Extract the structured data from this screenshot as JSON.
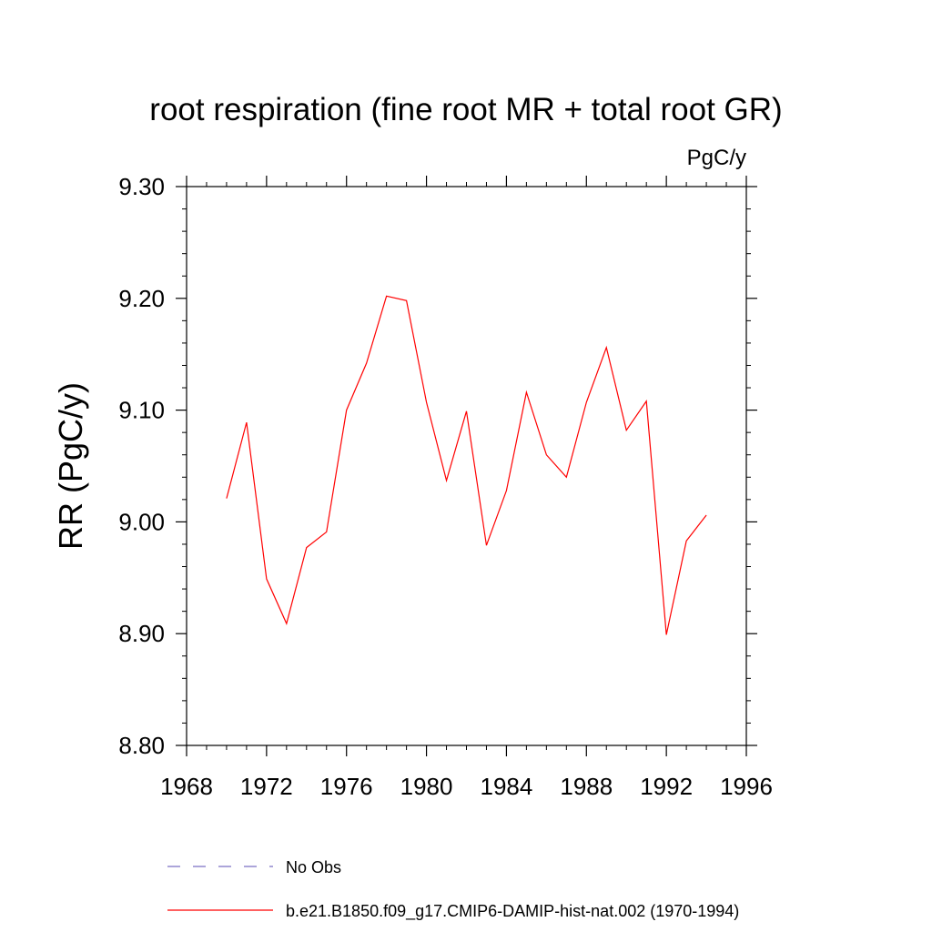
{
  "chart_data": {
    "type": "line",
    "title": "root respiration (fine root MR + total root GR)",
    "units": "PgC/y",
    "ylabel": "RR  (PgC/y)",
    "xlabel": "",
    "xlim": [
      1968,
      1996
    ],
    "ylim": [
      8.8,
      9.3
    ],
    "x_ticks": [
      1968,
      1972,
      1976,
      1980,
      1984,
      1988,
      1992,
      1996
    ],
    "y_ticks": [
      8.8,
      8.9,
      9.0,
      9.1,
      9.2,
      9.3
    ],
    "x_tick_labels": [
      "1968",
      "1972",
      "1976",
      "1980",
      "1984",
      "1988",
      "1992",
      "1996"
    ],
    "y_tick_labels": [
      "8.80",
      "8.90",
      "9.00",
      "9.10",
      "9.20",
      "9.30"
    ],
    "grid": false,
    "legend_position": "bottom",
    "legend": [
      {
        "label": "No Obs",
        "color": "#7b6fc4",
        "style": "dashed"
      },
      {
        "label": "b.e21.B1850.f09_g17.CMIP6-DAMIP-hist-nat.002 (1970-1994)",
        "color": "#ff0000",
        "style": "solid"
      }
    ],
    "series": [
      {
        "name": "b.e21.B1850.f09_g17.CMIP6-DAMIP-hist-nat.002 (1970-1994)",
        "color": "#ff0000",
        "x": [
          1970,
          1971,
          1972,
          1973,
          1974,
          1975,
          1976,
          1977,
          1978,
          1979,
          1980,
          1981,
          1982,
          1983,
          1984,
          1985,
          1986,
          1987,
          1988,
          1989,
          1990,
          1991,
          1992,
          1993,
          1994
        ],
        "values": [
          9.021,
          9.089,
          8.949,
          8.909,
          8.977,
          8.991,
          9.1,
          9.142,
          9.202,
          9.198,
          9.107,
          9.037,
          9.099,
          8.979,
          9.028,
          9.116,
          9.06,
          9.04,
          9.107,
          9.156,
          9.082,
          9.108,
          8.899,
          8.983,
          9.006
        ]
      }
    ]
  }
}
